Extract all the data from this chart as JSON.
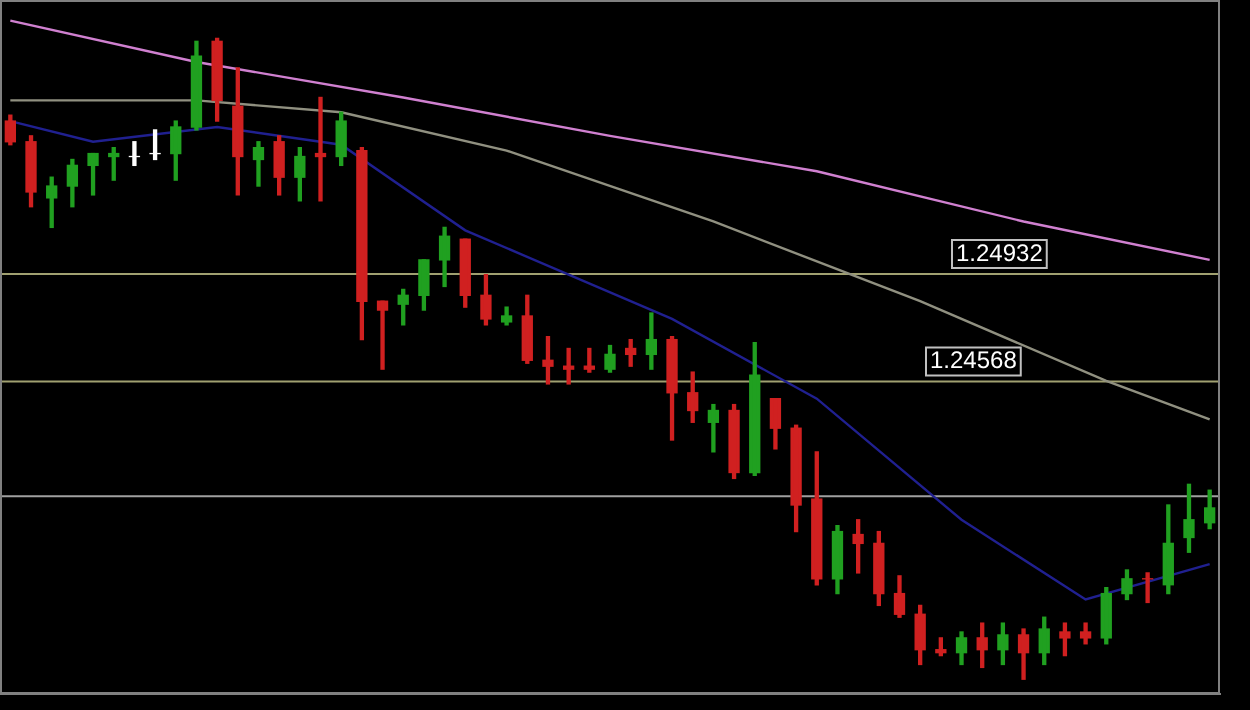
{
  "chart_data": {
    "type": "candlestick",
    "categories": [
      null,
      null,
      null,
      null,
      null,
      null,
      null,
      null,
      null,
      null,
      null,
      null,
      null,
      null,
      null,
      null,
      null,
      null,
      null,
      null,
      null,
      null,
      null,
      null,
      null,
      null,
      null,
      null,
      null,
      null,
      null,
      null,
      null,
      null,
      null,
      null,
      null,
      null,
      null,
      null,
      null,
      null,
      null,
      null,
      null,
      null,
      null,
      null,
      null,
      null,
      null,
      null,
      null,
      null,
      null,
      null,
      null,
      null,
      null
    ],
    "ohlc": [
      [
        1.2545,
        1.2547,
        1.2537,
        1.2538
      ],
      [
        1.2538,
        1.254,
        1.2516,
        1.2521
      ],
      [
        1.2519,
        1.2526,
        1.2509,
        1.2523
      ],
      [
        1.2523,
        1.2532,
        1.2516,
        1.253
      ],
      [
        1.253,
        1.2534,
        1.252,
        1.2534
      ],
      [
        1.2533,
        1.2536,
        1.2525,
        1.2534
      ],
      [
        1.2533,
        1.2538,
        1.253,
        1.2533
      ],
      [
        1.2534,
        1.2542,
        1.2532,
        1.2534
      ],
      [
        1.2534,
        1.2545,
        1.2525,
        1.2543
      ],
      [
        1.2543,
        1.2572,
        1.2542,
        1.2567
      ],
      [
        1.2572,
        1.2573,
        1.2545,
        1.2552
      ],
      [
        1.255,
        1.2563,
        1.252,
        1.2533
      ],
      [
        1.2532,
        1.2538,
        1.2523,
        1.2536
      ],
      [
        1.2538,
        1.254,
        1.252,
        1.2526
      ],
      [
        1.2526,
        1.2536,
        1.2518,
        1.2533
      ],
      [
        1.2534,
        1.2553,
        1.2518,
        1.2533
      ],
      [
        1.2533,
        1.2548,
        1.253,
        1.2545
      ],
      [
        1.2535,
        1.2536,
        1.2471,
        1.2484
      ],
      [
        1.2484,
        1.2484,
        1.2461,
        1.2481
      ],
      [
        1.2483,
        1.2488,
        1.2476,
        1.2486
      ],
      [
        1.2486,
        1.2498,
        1.2481,
        1.2498
      ],
      [
        1.2498,
        1.2509,
        1.2489,
        1.2506
      ],
      [
        1.2505,
        1.2505,
        1.2482,
        1.2486
      ],
      [
        1.2486,
        1.2493,
        1.2476,
        1.2478
      ],
      [
        1.2477,
        1.2482,
        1.2476,
        1.2479
      ],
      [
        1.2479,
        1.2486,
        1.2463,
        1.2464
      ],
      [
        1.2464,
        1.2472,
        1.2456,
        1.2462
      ],
      [
        1.2462,
        1.2468,
        1.2456,
        1.2461
      ],
      [
        1.2462,
        1.2468,
        1.246,
        1.2461
      ],
      [
        1.2461,
        1.2469,
        1.246,
        1.2466
      ],
      [
        1.2468,
        1.2471,
        1.2462,
        1.2466
      ],
      [
        1.2466,
        1.248,
        1.2461,
        1.2471
      ],
      [
        1.2471,
        1.2472,
        1.2437,
        1.2453
      ],
      [
        1.2453,
        1.246,
        1.2443,
        1.2447
      ],
      [
        1.2443,
        1.2449,
        1.2433,
        1.2447
      ],
      [
        1.2447,
        1.2449,
        1.2424,
        1.2426
      ],
      [
        1.2426,
        1.247,
        1.2425,
        1.2459
      ],
      [
        1.2451,
        1.2451,
        1.2434,
        1.2441
      ],
      [
        1.2441,
        1.2442,
        1.2406,
        1.2415
      ],
      [
        1.2417,
        1.2433,
        1.2388,
        1.239
      ],
      [
        1.239,
        1.2408,
        1.2385,
        1.2406
      ],
      [
        1.2405,
        1.241,
        1.2392,
        1.2402
      ],
      [
        1.2402,
        1.2406,
        1.2381,
        1.2385
      ],
      [
        1.2385,
        1.2391,
        1.2377,
        1.2378
      ],
      [
        1.2378,
        1.2381,
        1.2361,
        1.2366
      ],
      [
        1.2366,
        1.237,
        1.2364,
        1.2365
      ],
      [
        1.2365,
        1.2372,
        1.2361,
        1.237
      ],
      [
        1.237,
        1.2375,
        1.236,
        1.2366
      ],
      [
        1.2366,
        1.2375,
        1.2361,
        1.2371
      ],
      [
        1.2371,
        1.2373,
        1.2356,
        1.2365
      ],
      [
        1.2365,
        1.2377,
        1.2361,
        1.2373
      ],
      [
        1.2372,
        1.2375,
        1.2364,
        1.237
      ],
      [
        1.2372,
        1.2375,
        1.2368,
        1.237
      ],
      [
        1.237,
        1.2387,
        1.2368,
        1.2385
      ],
      [
        1.2385,
        1.2393,
        1.2383,
        1.239
      ],
      [
        1.239,
        1.2392,
        1.2382,
        1.239
      ],
      [
        1.2388,
        1.2415,
        1.2385,
        1.2402
      ],
      [
        1.2404,
        1.2422,
        1.2399,
        1.241
      ],
      [
        1.2409,
        1.242,
        1.2407,
        1.2414
      ]
    ],
    "colors": [
      "#d02020",
      "#d02020",
      "#20a020",
      "#20a020",
      "#20a020",
      "#20a020",
      "#ffffff",
      "#ffffff",
      "#20a020",
      "#20a020",
      "#d02020",
      "#d02020",
      "#20a020",
      "#d02020",
      "#20a020",
      "#d02020",
      "#20a020",
      "#d02020",
      "#d02020",
      "#20a020",
      "#20a020",
      "#20a020",
      "#d02020",
      "#d02020",
      "#20a020",
      "#d02020",
      "#d02020",
      "#d02020",
      "#d02020",
      "#20a020",
      "#d02020",
      "#20a020",
      "#d02020",
      "#d02020",
      "#20a020",
      "#d02020",
      "#20a020",
      "#d02020",
      "#d02020",
      "#d02020",
      "#20a020",
      "#d02020",
      "#d02020",
      "#d02020",
      "#d02020",
      "#d02020",
      "#20a020",
      "#d02020",
      "#20a020",
      "#d02020",
      "#20a020",
      "#d02020",
      "#d02020",
      "#20a020",
      "#20a020",
      "#d02020",
      "#20a020",
      "#20a020",
      "#20a020"
    ],
    "series": [
      {
        "type": "line",
        "color": "#d080d0",
        "values": [
          1.2579,
          null,
          null,
          null,
          null,
          null,
          null,
          null,
          null,
          1.2565,
          null,
          null,
          null,
          null,
          null,
          null,
          null,
          null,
          null,
          1.2553,
          null,
          null,
          null,
          null,
          null,
          null,
          null,
          null,
          null,
          1.254,
          null,
          null,
          null,
          null,
          null,
          null,
          null,
          null,
          null,
          1.2528,
          null,
          null,
          null,
          null,
          null,
          null,
          null,
          null,
          null,
          1.2511,
          null,
          null,
          null,
          null,
          null,
          null,
          null,
          null,
          1.2498
        ]
      },
      {
        "type": "line",
        "color": "#909080",
        "values": [
          1.2552,
          null,
          null,
          null,
          null,
          null,
          null,
          null,
          null,
          1.2552,
          null,
          null,
          null,
          null,
          null,
          null,
          1.2548,
          null,
          null,
          null,
          null,
          null,
          null,
          null,
          1.2535,
          null,
          null,
          null,
          null,
          null,
          null,
          null,
          null,
          null,
          1.2511,
          null,
          null,
          null,
          null,
          null,
          null,
          null,
          null,
          null,
          1.2484,
          null,
          null,
          null,
          null,
          null,
          null,
          null,
          null,
          1.2457,
          null,
          null,
          null,
          null,
          1.2444
        ]
      },
      {
        "type": "line",
        "color": "#202090",
        "values": [
          1.2545,
          null,
          null,
          null,
          1.2538,
          null,
          null,
          null,
          null,
          null,
          1.2543,
          null,
          null,
          null,
          null,
          null,
          1.2537,
          null,
          null,
          null,
          null,
          null,
          1.2508,
          null,
          null,
          null,
          null,
          null,
          null,
          null,
          null,
          null,
          1.2478,
          null,
          null,
          null,
          null,
          null,
          null,
          1.2451,
          null,
          null,
          null,
          null,
          null,
          null,
          1.241,
          null,
          null,
          null,
          null,
          null,
          1.2383,
          null,
          null,
          null,
          null,
          null,
          1.2395
        ]
      }
    ],
    "ylim": [
      1.2351,
      1.2586
    ],
    "ref_lines": [
      {
        "axis": "y",
        "value": 1.24932,
        "label": "1.24932",
        "color": "#a0a070"
      },
      {
        "axis": "y",
        "value": 1.24568,
        "label": "1.24568",
        "color": "#a0a070"
      },
      {
        "axis": "y",
        "value": 1.2418,
        "color": "#a0a0a0"
      }
    ],
    "legend": false
  }
}
